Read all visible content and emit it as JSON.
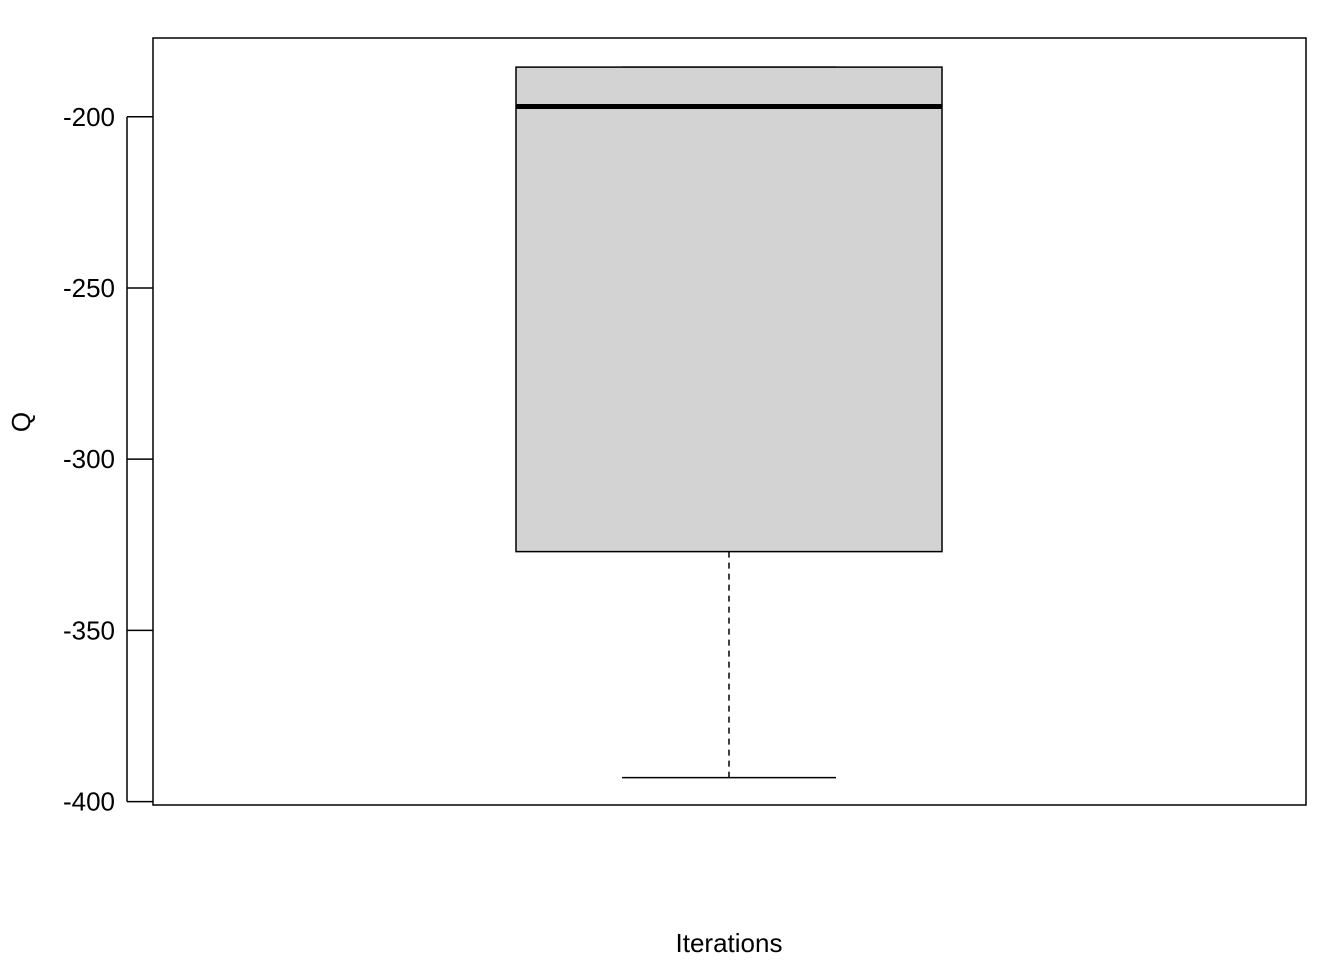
{
  "chart_data": {
    "type": "box",
    "xlabel": "Iterations",
    "ylabel": "Q",
    "ylim": [
      -401,
      -177
    ],
    "yticks": [
      -400,
      -350,
      -300,
      -250,
      -200
    ],
    "ytick_labels": [
      "-400",
      "-350",
      "-300",
      "-250",
      "-200"
    ],
    "grid": false,
    "box": {
      "whisker_low": -393,
      "q1": -327,
      "median": -197,
      "q3": -185.5,
      "whisker_high": -185.5
    },
    "colors": {
      "box_fill": "#d3d3d3",
      "stroke": "#000000"
    }
  }
}
